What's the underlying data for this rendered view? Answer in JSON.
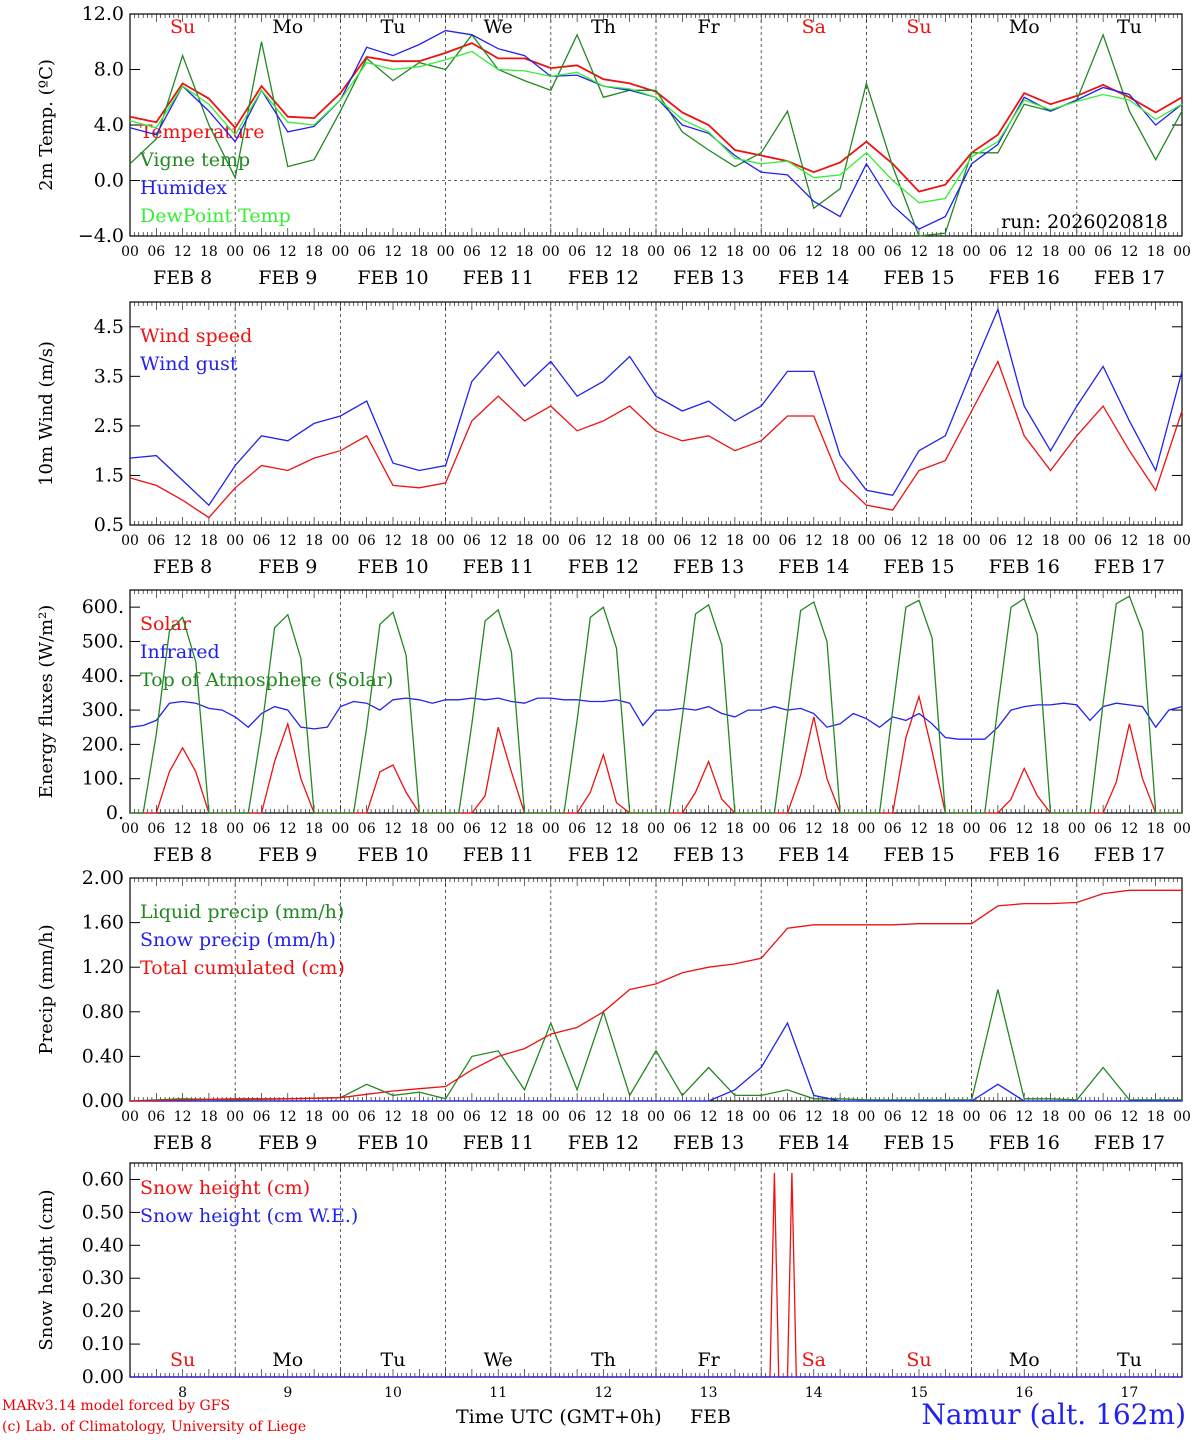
{
  "title": "Namur (alt. 162m)",
  "footer": {
    "model": "MARv3.14 model forced by GFS",
    "lab": "(c) Lab. of Climatology, University of Liege",
    "xlabel": "Time UTC (GMT+0h)",
    "month": "FEB"
  },
  "run_label": "run: 2026020818",
  "hour_labels": [
    "00",
    "06",
    "12",
    "18"
  ],
  "day_labels": [
    "FEB  8",
    "FEB  9",
    "FEB 10",
    "FEB 11",
    "FEB 12",
    "FEB 13",
    "FEB 14",
    "FEB 15",
    "FEB 16",
    "FEB 17"
  ],
  "day_numbers": [
    "8",
    "9",
    "10",
    "11",
    "12",
    "13",
    "14",
    "15",
    "16",
    "17"
  ],
  "weekdays": [
    {
      "name": "Su",
      "color": "#ee1111"
    },
    {
      "name": "Mo",
      "color": "#000000"
    },
    {
      "name": "Tu",
      "color": "#000000"
    },
    {
      "name": "We",
      "color": "#000000"
    },
    {
      "name": "Th",
      "color": "#000000"
    },
    {
      "name": "Fr",
      "color": "#000000"
    },
    {
      "name": "Sa",
      "color": "#ee1111"
    },
    {
      "name": "Su",
      "color": "#ee1111"
    },
    {
      "name": "Mo",
      "color": "#000000"
    },
    {
      "name": "Tu",
      "color": "#000000"
    }
  ],
  "chart_data": [
    {
      "type": "line",
      "ylabel": "2m Temp. (ºC)",
      "ylim": [
        -4,
        12
      ],
      "yticks": [
        -4,
        0,
        4,
        8,
        12
      ],
      "ytick_labels": [
        "−4.0",
        "0.0",
        "4.0",
        "8.0",
        "12.0"
      ],
      "zero_line": true,
      "x_unit": "hours since FEB 8 00 UTC",
      "x": [
        0,
        6,
        12,
        18,
        24,
        30,
        36,
        42,
        48,
        54,
        60,
        66,
        72,
        78,
        84,
        90,
        96,
        102,
        108,
        114,
        120,
        126,
        132,
        138,
        144,
        150,
        156,
        162,
        168,
        174,
        180,
        186,
        192,
        198,
        204,
        210,
        216,
        222,
        228,
        234,
        240
      ],
      "series": [
        {
          "name": "Temperature",
          "color": "#ee1111",
          "values": [
            4.6,
            4.2,
            7.0,
            5.9,
            3.8,
            6.8,
            4.6,
            4.5,
            6.3,
            8.9,
            8.6,
            8.6,
            9.2,
            9.9,
            8.8,
            8.8,
            8.1,
            8.3,
            7.3,
            7.0,
            6.4,
            4.9,
            4.0,
            2.2,
            1.8,
            1.4,
            0.6,
            1.3,
            2.8,
            1.2,
            -0.8,
            -0.3,
            2.0,
            3.3,
            6.3,
            5.5,
            6.1,
            6.9,
            6.0,
            4.9,
            6.0
          ]
        },
        {
          "name": "Vigne temp",
          "color": "#228822",
          "values": [
            1.2,
            3.0,
            9.0,
            4.0,
            0.2,
            10.0,
            1.0,
            1.5,
            5.0,
            8.8,
            7.2,
            8.5,
            8.0,
            10.5,
            8.0,
            7.2,
            6.5,
            10.5,
            6.0,
            6.5,
            6.5,
            3.5,
            2.2,
            1.0,
            2.0,
            5.0,
            -2.0,
            -0.6,
            7.0,
            1.0,
            -4.0,
            -3.8,
            2.0,
            2.0,
            5.5,
            5.0,
            5.8,
            10.5,
            5.0,
            1.5,
            5.0
          ]
        },
        {
          "name": "Humidex",
          "color": "#2222ee",
          "values": [
            3.8,
            3.3,
            6.8,
            5.0,
            2.8,
            6.5,
            3.5,
            3.9,
            5.8,
            9.6,
            9.0,
            9.8,
            10.8,
            10.5,
            9.5,
            9.0,
            7.5,
            7.6,
            6.8,
            6.5,
            6.0,
            4.0,
            3.4,
            1.8,
            0.6,
            0.4,
            -1.5,
            -2.6,
            1.2,
            -1.8,
            -3.5,
            -2.6,
            1.2,
            2.6,
            6.0,
            5.0,
            5.8,
            6.7,
            6.2,
            4.0,
            5.5
          ]
        },
        {
          "name": "DewPoint Temp",
          "color": "#33ee33",
          "values": [
            4.3,
            3.8,
            6.8,
            5.5,
            3.3,
            6.5,
            4.2,
            4.0,
            5.8,
            8.5,
            8.0,
            8.2,
            8.7,
            9.3,
            8.0,
            7.9,
            7.5,
            7.8,
            6.8,
            6.6,
            6.0,
            4.4,
            3.5,
            1.6,
            1.2,
            1.4,
            0.2,
            0.4,
            2.0,
            0.0,
            -1.6,
            -1.3,
            1.7,
            2.8,
            5.8,
            5.1,
            5.7,
            6.2,
            5.8,
            4.4,
            5.5
          ]
        }
      ]
    },
    {
      "type": "line",
      "ylabel": "10m Wind (m/s)",
      "ylim": [
        0.5,
        5.0
      ],
      "yticks": [
        0.5,
        1.5,
        2.5,
        3.5,
        4.5
      ],
      "ytick_labels": [
        "0.5",
        "1.5",
        "2.5",
        "3.5",
        "4.5"
      ],
      "x_unit": "hours since FEB 8 00 UTC",
      "x": [
        0,
        6,
        12,
        18,
        24,
        30,
        36,
        42,
        48,
        54,
        60,
        66,
        72,
        78,
        84,
        90,
        96,
        102,
        108,
        114,
        120,
        126,
        132,
        138,
        144,
        150,
        156,
        162,
        168,
        174,
        180,
        186,
        192,
        198,
        204,
        210,
        216,
        222,
        228,
        234,
        240
      ],
      "series": [
        {
          "name": "Wind speed",
          "color": "#ee1111",
          "values": [
            1.45,
            1.3,
            1.0,
            0.65,
            1.25,
            1.7,
            1.6,
            1.85,
            2.0,
            2.3,
            1.3,
            1.25,
            1.35,
            2.6,
            3.1,
            2.6,
            2.9,
            2.4,
            2.6,
            2.9,
            2.4,
            2.2,
            2.3,
            2.0,
            2.2,
            2.7,
            2.7,
            1.4,
            0.9,
            0.8,
            1.6,
            1.8,
            2.8,
            3.8,
            2.3,
            1.6,
            2.3,
            2.9,
            2.0,
            1.2,
            2.8
          ]
        },
        {
          "name": "Wind gust",
          "color": "#2222ee",
          "values": [
            1.85,
            1.9,
            1.4,
            0.9,
            1.7,
            2.3,
            2.2,
            2.55,
            2.7,
            3.0,
            1.75,
            1.6,
            1.7,
            3.4,
            4.0,
            3.3,
            3.8,
            3.1,
            3.4,
            3.9,
            3.1,
            2.8,
            3.0,
            2.6,
            2.9,
            3.6,
            3.6,
            1.9,
            1.2,
            1.1,
            2.0,
            2.3,
            3.6,
            4.85,
            2.9,
            2.0,
            2.9,
            3.7,
            2.6,
            1.6,
            3.6
          ]
        }
      ]
    },
    {
      "type": "line",
      "ylabel": "Energy fluxes (W/m²)",
      "ylim": [
        0,
        650
      ],
      "yticks": [
        0,
        100,
        200,
        300,
        400,
        500,
        600
      ],
      "ytick_labels": [
        "0.",
        "100.",
        "200.",
        "300.",
        "400.",
        "500.",
        "600."
      ],
      "x_unit": "hours since FEB 8 00 UTC",
      "x": [
        0,
        3,
        6,
        9,
        12,
        15,
        18,
        21,
        24,
        27,
        30,
        33,
        36,
        39,
        42,
        45,
        48,
        51,
        54,
        57,
        60,
        63,
        66,
        69,
        72,
        75,
        78,
        81,
        84,
        87,
        90,
        93,
        96,
        99,
        102,
        105,
        108,
        111,
        114,
        117,
        120,
        123,
        126,
        129,
        132,
        135,
        138,
        141,
        144,
        147,
        150,
        153,
        156,
        159,
        162,
        165,
        168,
        171,
        174,
        177,
        180,
        183,
        186,
        189,
        192,
        195,
        198,
        201,
        204,
        207,
        210,
        213,
        216,
        219,
        222,
        225,
        228,
        231,
        234,
        237,
        240
      ],
      "series": [
        {
          "name": "Solar",
          "color": "#ee1111",
          "values": [
            0,
            0,
            0,
            120,
            190,
            120,
            0,
            0,
            0,
            0,
            0,
            150,
            260,
            100,
            0,
            0,
            0,
            0,
            0,
            120,
            140,
            60,
            0,
            0,
            0,
            0,
            0,
            50,
            250,
            120,
            0,
            0,
            0,
            0,
            0,
            60,
            170,
            30,
            0,
            0,
            0,
            0,
            0,
            60,
            150,
            40,
            0,
            0,
            0,
            0,
            0,
            110,
            280,
            100,
            0,
            0,
            0,
            0,
            0,
            220,
            340,
            180,
            0,
            0,
            0,
            0,
            0,
            40,
            130,
            50,
            0,
            0,
            0,
            0,
            0,
            90,
            260,
            100,
            0,
            0,
            0
          ]
        },
        {
          "name": "Infrared",
          "color": "#2222ee",
          "values": [
            250,
            255,
            270,
            320,
            325,
            320,
            305,
            300,
            280,
            250,
            290,
            310,
            300,
            250,
            245,
            250,
            310,
            325,
            320,
            300,
            330,
            335,
            330,
            320,
            330,
            330,
            335,
            330,
            335,
            325,
            320,
            335,
            335,
            330,
            330,
            325,
            325,
            330,
            320,
            255,
            300,
            300,
            305,
            300,
            310,
            290,
            280,
            300,
            300,
            310,
            300,
            305,
            290,
            250,
            260,
            290,
            275,
            250,
            280,
            270,
            290,
            260,
            220,
            215,
            215,
            215,
            250,
            300,
            310,
            315,
            315,
            320,
            315,
            270,
            310,
            320,
            315,
            310,
            250,
            300,
            310
          ]
        },
        {
          "name": "Top of Atmosphere (Solar)",
          "color": "#228822",
          "values": [
            0,
            0,
            230,
            530,
            570,
            440,
            0,
            0,
            0,
            0,
            240,
            540,
            578,
            450,
            0,
            0,
            0,
            0,
            250,
            550,
            585,
            460,
            0,
            0,
            0,
            0,
            260,
            560,
            592,
            470,
            0,
            0,
            0,
            0,
            270,
            570,
            600,
            480,
            0,
            0,
            0,
            0,
            280,
            580,
            607,
            490,
            0,
            0,
            0,
            0,
            290,
            590,
            615,
            500,
            0,
            0,
            0,
            0,
            300,
            600,
            620,
            510,
            0,
            0,
            0,
            0,
            310,
            600,
            625,
            520,
            0,
            0,
            0,
            0,
            320,
            610,
            632,
            530,
            0,
            0,
            0
          ]
        }
      ]
    },
    {
      "type": "line",
      "ylabel": "Precip (mm/h)",
      "ylim": [
        0,
        2.0
      ],
      "yticks": [
        0,
        0.4,
        0.8,
        1.2,
        1.6,
        2.0
      ],
      "ytick_labels": [
        "0.00",
        "0.40",
        "0.80",
        "1.20",
        "1.60",
        "2.00"
      ],
      "x_unit": "hours since FEB 8 00 UTC",
      "x": [
        0,
        12,
        24,
        36,
        48,
        54,
        60,
        66,
        72,
        78,
        84,
        90,
        96,
        102,
        108,
        114,
        120,
        126,
        132,
        138,
        144,
        150,
        156,
        162,
        168,
        174,
        180,
        192,
        198,
        204,
        210,
        216,
        222,
        228,
        234,
        240
      ],
      "series": [
        {
          "name": "Liquid precip (mm/h)",
          "color": "#228822",
          "values": [
            0,
            0.02,
            0.01,
            0.02,
            0.03,
            0.15,
            0.05,
            0.08,
            0.02,
            0.4,
            0.45,
            0.1,
            0.7,
            0.1,
            0.8,
            0.05,
            0.45,
            0.05,
            0.3,
            0.05,
            0.05,
            0.1,
            0.02,
            0.02,
            0.01,
            0.01,
            0.01,
            0.01,
            1.0,
            0.02,
            0.02,
            0.01,
            0.3,
            0.01,
            0.01,
            0.01
          ]
        },
        {
          "name": "Snow precip (mm/h)",
          "color": "#2222ee",
          "values": [
            0,
            0,
            0,
            0,
            0,
            0,
            0,
            0,
            0,
            0,
            0,
            0,
            0,
            0,
            0,
            0,
            0,
            0,
            0,
            0.1,
            0.3,
            0.7,
            0.05,
            0,
            0,
            0,
            0,
            0,
            0.15,
            0,
            0,
            0,
            0,
            0,
            0,
            0
          ]
        },
        {
          "name": "Total cumulated (cm)",
          "color": "#ee1111",
          "values": [
            0,
            0.01,
            0.02,
            0.02,
            0.03,
            0.06,
            0.09,
            0.11,
            0.13,
            0.28,
            0.4,
            0.47,
            0.6,
            0.66,
            0.8,
            1.0,
            1.05,
            1.15,
            1.2,
            1.23,
            1.28,
            1.55,
            1.58,
            1.58,
            1.58,
            1.58,
            1.59,
            1.59,
            1.75,
            1.77,
            1.77,
            1.78,
            1.86,
            1.89,
            1.89,
            1.89
          ]
        }
      ]
    },
    {
      "type": "line",
      "ylabel": "Snow height (cm)",
      "ylim": [
        0,
        0.65
      ],
      "yticks": [
        0,
        0.1,
        0.2,
        0.3,
        0.4,
        0.5,
        0.6
      ],
      "ytick_labels": [
        "0.00",
        "0.10",
        "0.20",
        "0.30",
        "0.40",
        "0.50",
        "0.60"
      ],
      "x_unit": "hours since FEB 8 00 UTC",
      "x": [
        0,
        146,
        147,
        148,
        150,
        151,
        152,
        240
      ],
      "series": [
        {
          "name": "Snow height (cm)",
          "color": "#ee1111",
          "values": [
            0,
            0,
            0.62,
            0,
            0,
            0.62,
            0,
            0
          ]
        },
        {
          "name": "Snow height (cm W.E.)",
          "color": "#2222ee",
          "values": [
            0,
            0,
            0,
            0,
            0,
            0,
            0,
            0
          ]
        }
      ]
    }
  ]
}
